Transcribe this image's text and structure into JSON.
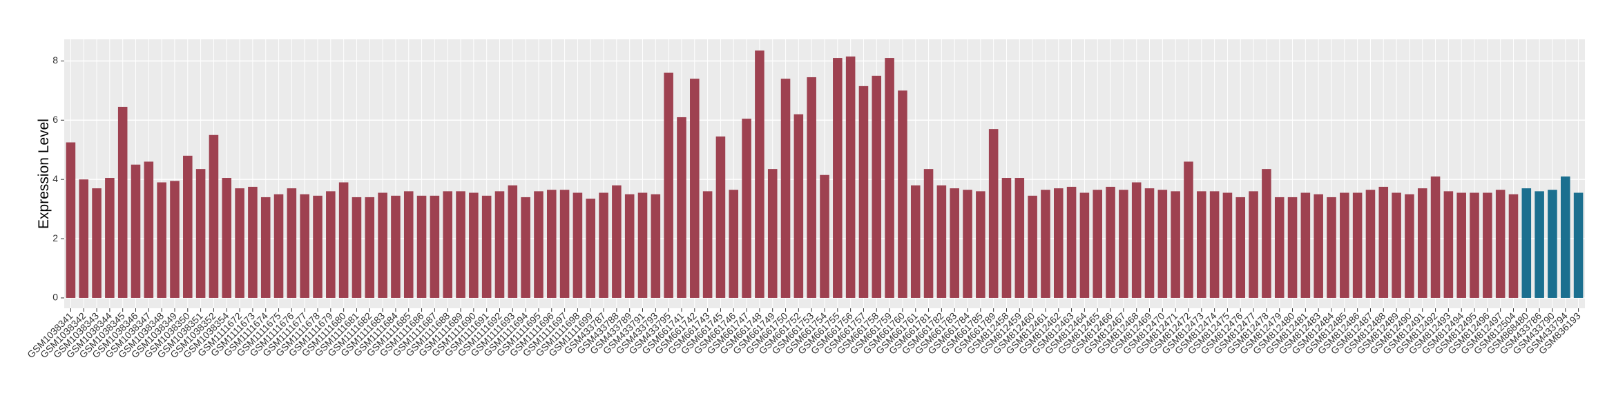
{
  "chart_data": {
    "type": "bar",
    "y_label": "Expression Level",
    "categories": [
      "GSM1038341",
      "GSM1038342",
      "GSM1038343",
      "GSM1038344",
      "GSM1038345",
      "GSM1038346",
      "GSM1038347",
      "GSM1038348",
      "GSM1038349",
      "GSM1038350",
      "GSM1038351",
      "GSM1038352",
      "GSM1038354",
      "GSM1111672",
      "GSM1111673",
      "GSM1111674",
      "GSM1111675",
      "GSM1111676",
      "GSM1111677",
      "GSM1111678",
      "GSM1111679",
      "GSM1111680",
      "GSM1111681",
      "GSM1111682",
      "GSM1111683",
      "GSM1111684",
      "GSM1111685",
      "GSM1111686",
      "GSM1111687",
      "GSM1111688",
      "GSM1111689",
      "GSM1111690",
      "GSM1111691",
      "GSM1111692",
      "GSM1111693",
      "GSM1111694",
      "GSM1111695",
      "GSM1111696",
      "GSM1111697",
      "GSM1111698",
      "GSM1111699",
      "GSM433787",
      "GSM433788",
      "GSM433789",
      "GSM433791",
      "GSM433793",
      "GSM433795",
      "GSM661741",
      "GSM661742",
      "GSM661743",
      "GSM661745",
      "GSM661746",
      "GSM661747",
      "GSM661748",
      "GSM661749",
      "GSM661750",
      "GSM661752",
      "GSM661753",
      "GSM661754",
      "GSM661755",
      "GSM661756",
      "GSM661757",
      "GSM661758",
      "GSM661759",
      "GSM661760",
      "GSM661761",
      "GSM661781",
      "GSM661782",
      "GSM661783",
      "GSM661784",
      "GSM661785",
      "GSM661789",
      "GSM812458",
      "GSM812459",
      "GSM812460",
      "GSM812461",
      "GSM812462",
      "GSM812463",
      "GSM812464",
      "GSM812465",
      "GSM812466",
      "GSM812467",
      "GSM812468",
      "GSM812469",
      "GSM812470",
      "GSM812471",
      "GSM812472",
      "GSM812473",
      "GSM812474",
      "GSM812475",
      "GSM812476",
      "GSM812477",
      "GSM812478",
      "GSM812479",
      "GSM812480",
      "GSM812481",
      "GSM812483",
      "GSM812484",
      "GSM812485",
      "GSM812486",
      "GSM812487",
      "GSM812488",
      "GSM812489",
      "GSM812490",
      "GSM812491",
      "GSM812492",
      "GSM812493",
      "GSM812494",
      "GSM812495",
      "GSM812496",
      "GSM812497",
      "GSM812504",
      "GSM868480",
      "GSM433786",
      "GSM433790",
      "GSM433794",
      "GSM836193"
    ],
    "values": [
      5.25,
      4.0,
      3.7,
      4.05,
      6.45,
      4.5,
      4.6,
      3.9,
      3.95,
      4.8,
      4.35,
      5.5,
      4.05,
      3.7,
      3.75,
      3.4,
      3.5,
      3.7,
      3.5,
      3.45,
      3.6,
      3.9,
      3.4,
      3.4,
      3.55,
      3.45,
      3.6,
      3.45,
      3.45,
      3.6,
      3.6,
      3.55,
      3.45,
      3.6,
      3.8,
      3.4,
      3.6,
      3.65,
      3.65,
      3.55,
      3.35,
      3.55,
      3.8,
      3.5,
      3.55,
      3.5,
      7.6,
      6.1,
      7.4,
      3.6,
      5.45,
      3.65,
      6.05,
      8.35,
      4.35,
      7.4,
      6.2,
      7.45,
      4.15,
      8.1,
      8.15,
      7.15,
      7.5,
      8.1,
      7.0,
      3.8,
      4.35,
      3.8,
      3.7,
      3.65,
      3.6,
      5.7,
      4.05,
      4.05,
      3.45,
      3.65,
      3.7,
      3.75,
      3.55,
      3.65,
      3.75,
      3.65,
      3.9,
      3.7,
      3.65,
      3.6,
      4.6,
      3.6,
      3.6,
      3.55,
      3.4,
      3.6,
      4.35,
      3.4,
      3.4,
      3.55,
      3.5,
      3.4,
      3.55,
      3.55,
      3.65,
      3.75,
      3.55,
      3.5,
      3.7,
      4.1,
      3.6,
      3.55,
      3.55,
      3.55,
      3.65,
      3.5,
      3.7,
      3.6,
      3.65,
      4.1,
      3.55
    ],
    "colors": [
      "#9e4150",
      "#9e4150",
      "#9e4150",
      "#9e4150",
      "#9e4150",
      "#9e4150",
      "#9e4150",
      "#9e4150",
      "#9e4150",
      "#9e4150",
      "#9e4150",
      "#9e4150",
      "#9e4150",
      "#9e4150",
      "#9e4150",
      "#9e4150",
      "#9e4150",
      "#9e4150",
      "#9e4150",
      "#9e4150",
      "#9e4150",
      "#9e4150",
      "#9e4150",
      "#9e4150",
      "#9e4150",
      "#9e4150",
      "#9e4150",
      "#9e4150",
      "#9e4150",
      "#9e4150",
      "#9e4150",
      "#9e4150",
      "#9e4150",
      "#9e4150",
      "#9e4150",
      "#9e4150",
      "#9e4150",
      "#9e4150",
      "#9e4150",
      "#9e4150",
      "#9e4150",
      "#9e4150",
      "#9e4150",
      "#9e4150",
      "#9e4150",
      "#9e4150",
      "#9e4150",
      "#9e4150",
      "#9e4150",
      "#9e4150",
      "#9e4150",
      "#9e4150",
      "#9e4150",
      "#9e4150",
      "#9e4150",
      "#9e4150",
      "#9e4150",
      "#9e4150",
      "#9e4150",
      "#9e4150",
      "#9e4150",
      "#9e4150",
      "#9e4150",
      "#9e4150",
      "#9e4150",
      "#9e4150",
      "#9e4150",
      "#9e4150",
      "#9e4150",
      "#9e4150",
      "#9e4150",
      "#9e4150",
      "#9e4150",
      "#9e4150",
      "#9e4150",
      "#9e4150",
      "#9e4150",
      "#9e4150",
      "#9e4150",
      "#9e4150",
      "#9e4150",
      "#9e4150",
      "#9e4150",
      "#9e4150",
      "#9e4150",
      "#9e4150",
      "#9e4150",
      "#9e4150",
      "#9e4150",
      "#9e4150",
      "#9e4150",
      "#9e4150",
      "#9e4150",
      "#9e4150",
      "#9e4150",
      "#9e4150",
      "#9e4150",
      "#9e4150",
      "#9e4150",
      "#9e4150",
      "#9e4150",
      "#9e4150",
      "#9e4150",
      "#9e4150",
      "#9e4150",
      "#9e4150",
      "#9e4150",
      "#9e4150",
      "#9e4150",
      "#9e4150",
      "#9e4150",
      "#9e4150",
      "#1b6f8f",
      "#1b6f8f",
      "#1b6f8f",
      "#1b6f8f",
      "#1b6f8f"
    ],
    "ylim": [
      -0.35,
      8.73
    ],
    "yticks": [
      0,
      2,
      4,
      6,
      8
    ],
    "grid": true
  }
}
